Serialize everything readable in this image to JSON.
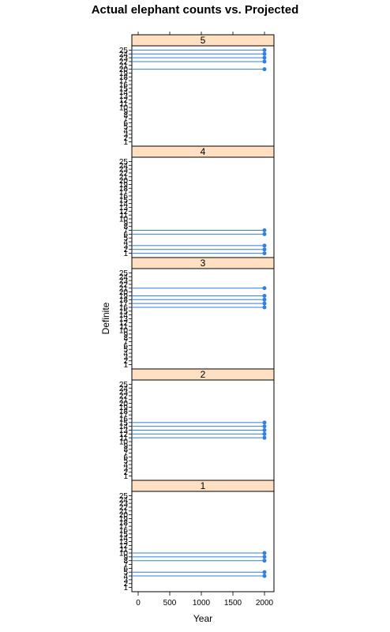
{
  "chart_data": {
    "type": "dotplot-lattice",
    "title": "Actual elephant counts vs. Projected",
    "xlabel": "Year",
    "ylabel": "Definite",
    "xlim": [
      -100,
      2150
    ],
    "x_ticks": [
      0,
      500,
      1000,
      1500,
      2000
    ],
    "ylim": [
      0.5,
      25.5
    ],
    "y_ticks": [
      1,
      2,
      3,
      4,
      5,
      6,
      7,
      8,
      9,
      10,
      11,
      12,
      13,
      14,
      15,
      16,
      17,
      18,
      19,
      20,
      21,
      22,
      23,
      24,
      25
    ],
    "line_color": "#2f7fe8",
    "strip_color": "#ffe0c2",
    "panels": [
      {
        "label": "5",
        "points": [
          {
            "y": 25,
            "x": 2000
          },
          {
            "y": 24,
            "x": 2000
          },
          {
            "y": 23,
            "x": 2000
          },
          {
            "y": 22,
            "x": 2000
          },
          {
            "y": 20,
            "x": 2000
          }
        ]
      },
      {
        "label": "4",
        "points": [
          {
            "y": 7,
            "x": 2000
          },
          {
            "y": 6,
            "x": 2000
          },
          {
            "y": 3,
            "x": 2000
          },
          {
            "y": 2,
            "x": 2000
          },
          {
            "y": 1,
            "x": 2000
          }
        ]
      },
      {
        "label": "3",
        "points": [
          {
            "y": 21,
            "x": 2000
          },
          {
            "y": 19,
            "x": 2000
          },
          {
            "y": 18,
            "x": 2000
          },
          {
            "y": 17,
            "x": 2000
          },
          {
            "y": 16,
            "x": 2000
          }
        ]
      },
      {
        "label": "2",
        "points": [
          {
            "y": 15,
            "x": 2000
          },
          {
            "y": 14,
            "x": 2000
          },
          {
            "y": 13,
            "x": 2000
          },
          {
            "y": 12,
            "x": 2000
          },
          {
            "y": 11,
            "x": 2000
          }
        ]
      },
      {
        "label": "1",
        "points": [
          {
            "y": 10,
            "x": 2000
          },
          {
            "y": 9,
            "x": 2000
          },
          {
            "y": 8,
            "x": 2000
          },
          {
            "y": 5,
            "x": 2000
          },
          {
            "y": 4,
            "x": 2000
          }
        ]
      }
    ]
  }
}
